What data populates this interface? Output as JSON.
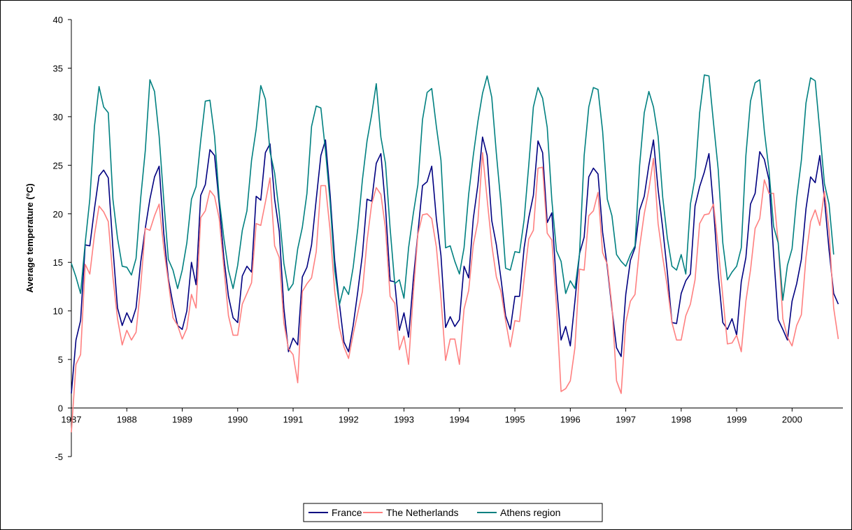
{
  "chart_data": {
    "type": "line",
    "title": "",
    "xlabel": "",
    "ylabel": "Average temperature (°C)",
    "ylim": [
      -5,
      40
    ],
    "yticks": [
      -5,
      0,
      5,
      10,
      15,
      20,
      25,
      30,
      35,
      40
    ],
    "xlim": [
      1987,
      2000.9167
    ],
    "xticks": [
      "1987",
      "1988",
      "1989",
      "1990",
      "1991",
      "1992",
      "1993",
      "1994",
      "1995",
      "1996",
      "1997",
      "1998",
      "1999",
      "2000"
    ],
    "x_start": "1987-01",
    "x_step": "month",
    "grid": false,
    "legend_position": "bottom",
    "series": [
      {
        "name": "France",
        "color": "#000080",
        "values": [
          1.5,
          7,
          9,
          16.8,
          16.7,
          20.5,
          23.9,
          24.5,
          23.7,
          16.5,
          10.3,
          8.5,
          9.8,
          8.8,
          10.3,
          15,
          18.5,
          21.5,
          23.8,
          24.9,
          18,
          13.3,
          10.7,
          8.5,
          8.1,
          10,
          15,
          12.7,
          21.9,
          23,
          26.6,
          26,
          21,
          15.5,
          11.5,
          9.3,
          8.8,
          13.6,
          14.6,
          14,
          21.8,
          21.4,
          26.3,
          27.2,
          21.5,
          18.2,
          10.3,
          5.8,
          7.2,
          6.5,
          13.5,
          14.5,
          16.8,
          21.5,
          26,
          27.6,
          22,
          15.2,
          10.8,
          6.8,
          5.8,
          8.5,
          12,
          15.8,
          21.5,
          21.3,
          25.2,
          26.2,
          20.7,
          13.1,
          13,
          8,
          9.8,
          7.3,
          13.2,
          18,
          22.9,
          23.3,
          24.9,
          19.5,
          15.7,
          8.3,
          9.4,
          8.4,
          9.1,
          14.6,
          13.4,
          19.5,
          23,
          27.9,
          26,
          19.3,
          16.8,
          13.3,
          9.5,
          8.1,
          11.5,
          11.5,
          16.5,
          19.6,
          21.9,
          27.5,
          26.3,
          19.1,
          20.1,
          12.7,
          7,
          8.4,
          6.4,
          11,
          15.9,
          17.6,
          23.8,
          24.7,
          24.1,
          18.1,
          14.5,
          10.2,
          6.2,
          5.3,
          11.7,
          15.2,
          16.5,
          20.4,
          21.8,
          25,
          27.6,
          22.5,
          18.5,
          14,
          8.8,
          8.7,
          11.8,
          13.1,
          13.8,
          20.8,
          22.8,
          24.3,
          26.2,
          20.5,
          13.8,
          8.8,
          8.1,
          9.2,
          7.5,
          13,
          15.5,
          21,
          22.1,
          26.4,
          25.6,
          23.5,
          15.9,
          9.1,
          8.1,
          7,
          11,
          12.8,
          15.3,
          20.5,
          23.8,
          23.2,
          26,
          21.5,
          16.3,
          11.8,
          10.7
        ]
      },
      {
        "name": "The Netherlands",
        "color": "#ff8080",
        "values": [
          -2.5,
          4.5,
          5.5,
          14.8,
          13.8,
          17.8,
          20.8,
          20.2,
          19.2,
          13.5,
          9.2,
          6.5,
          8,
          7,
          7.8,
          12.5,
          18.5,
          18.3,
          19.8,
          21,
          16.5,
          13,
          9.3,
          8.5,
          7.1,
          8.2,
          11.7,
          10.3,
          19.6,
          20.3,
          22.4,
          21.8,
          19.5,
          14.5,
          9.5,
          7.5,
          7.5,
          10.7,
          11.8,
          12.9,
          19,
          18.8,
          21.2,
          23.7,
          16.7,
          15.5,
          8.8,
          6.1,
          5.5,
          2.6,
          12,
          12.8,
          13.4,
          16.1,
          22.9,
          22.9,
          18.3,
          12,
          8.3,
          6.3,
          5.1,
          7.6,
          9.8,
          12,
          17.2,
          21,
          22.7,
          22,
          18.5,
          11.5,
          10.8,
          6,
          7.4,
          4.5,
          11.8,
          17.9,
          19.9,
          20,
          19.5,
          16.6,
          11.3,
          4.9,
          7.1,
          7.1,
          4.5,
          10.2,
          12.1,
          16.8,
          19.2,
          26.3,
          21.5,
          16.8,
          13.5,
          12,
          9,
          6.3,
          9,
          8.9,
          13.3,
          17.4,
          18.3,
          24.7,
          24.8,
          18,
          17.3,
          10.5,
          1.7,
          2,
          2.8,
          6.2,
          14.3,
          14.2,
          19.8,
          20.3,
          22.2,
          16,
          14.8,
          10.5,
          2.8,
          1.5,
          8.8,
          11,
          11.7,
          16.6,
          20,
          22.5,
          25.7,
          19,
          15.5,
          12.5,
          8.8,
          7,
          7,
          9.5,
          10.7,
          13.2,
          19,
          19.9,
          20,
          21,
          16.5,
          11.5,
          6.6,
          6.7,
          7.5,
          5.8,
          11,
          14.2,
          18.5,
          19.5,
          23.5,
          22.1,
          22.1,
          17,
          9.2,
          7.3,
          6.4,
          8.5,
          9.6,
          15.5,
          19.2,
          20.4,
          18.8,
          22.3,
          18.3,
          10.3,
          7.1
        ]
      },
      {
        "name": "Athens region",
        "color": "#008080",
        "values": [
          14.9,
          13.5,
          11.8,
          17,
          21.5,
          29,
          33.1,
          31,
          30.4,
          21.5,
          17.5,
          14.6,
          14.5,
          13.7,
          15.4,
          21.6,
          26.5,
          33.8,
          32.6,
          28,
          21.4,
          15.3,
          14.2,
          12.3,
          14.2,
          17,
          21.5,
          22.8,
          27.5,
          31.6,
          31.7,
          28,
          21.5,
          17.5,
          14.2,
          12.3,
          14.7,
          18.3,
          20.3,
          25.5,
          28.7,
          33.2,
          31.8,
          26.4,
          24.2,
          20.1,
          14.9,
          12.1,
          12.8,
          16.4,
          18.6,
          22.1,
          29,
          31.1,
          30.9,
          26.5,
          21.2,
          14.2,
          10.6,
          12.5,
          11.7,
          14.5,
          18.5,
          23.5,
          27.5,
          30.2,
          33.4,
          27.9,
          25.2,
          18.5,
          12.8,
          13.2,
          11.3,
          16.5,
          20,
          23,
          29.7,
          32.5,
          32.9,
          29,
          25.5,
          16.5,
          16.7,
          15.1,
          13.8,
          16.5,
          22,
          26,
          29.5,
          32.4,
          34.2,
          32,
          26.2,
          21,
          14.4,
          14.2,
          16.1,
          16,
          19.4,
          25,
          31,
          33,
          31.9,
          28.9,
          21.4,
          16.2,
          15.1,
          11.8,
          13.1,
          12.3,
          15.9,
          26,
          31,
          33,
          32.8,
          28.5,
          21.5,
          19.8,
          15.8,
          15.1,
          14.6,
          15.8,
          16.7,
          25,
          30.4,
          32.6,
          31,
          28,
          21.7,
          17.5,
          14.6,
          14.2,
          15.8,
          13.8,
          21,
          23.7,
          30.4,
          34.3,
          34.2,
          29.3,
          24.6,
          17,
          13.2,
          14,
          14.6,
          16.5,
          26,
          31.6,
          33.5,
          33.8,
          28.5,
          24.5,
          18.7,
          17,
          11.1,
          14.7,
          16.4,
          21.6,
          25.5,
          31.4,
          34,
          33.7,
          28.5,
          23.1,
          21,
          15.8
        ]
      }
    ]
  }
}
